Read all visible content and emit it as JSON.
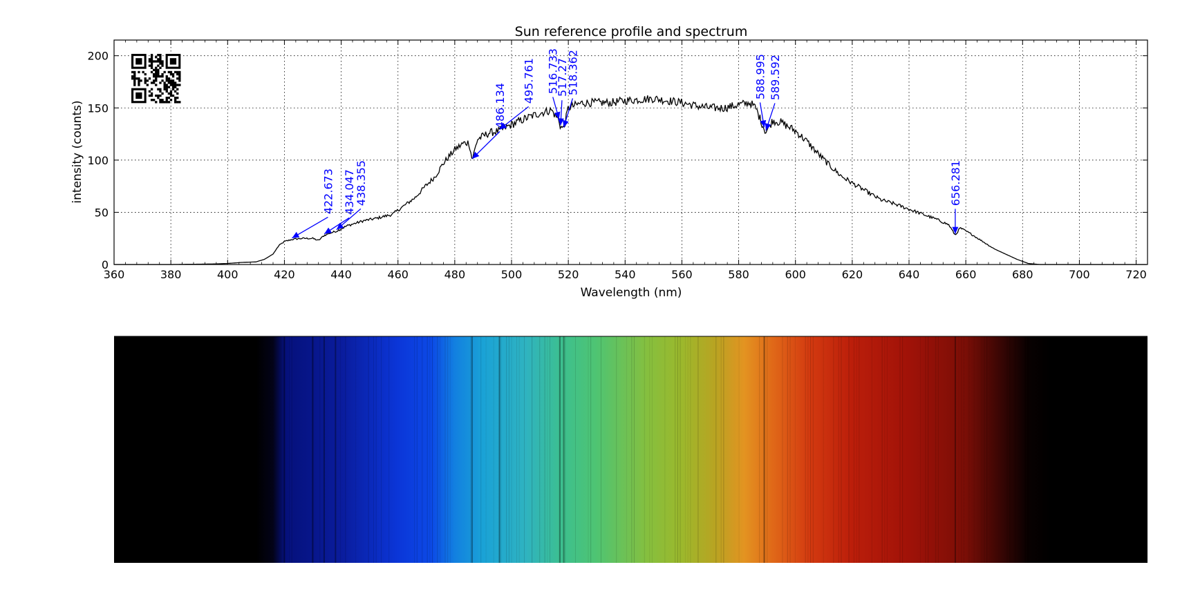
{
  "chart_data": {
    "type": "line",
    "title": "Sun reference profile and spectrum",
    "xlabel": "Wavelength (nm)",
    "ylabel": "intensity (counts)",
    "xlim": [
      360,
      724
    ],
    "ylim": [
      0,
      215
    ],
    "x_ticks": [
      360,
      380,
      400,
      420,
      440,
      460,
      480,
      500,
      520,
      540,
      560,
      580,
      600,
      620,
      640,
      660,
      680,
      700,
      720
    ],
    "y_ticks": [
      0,
      50,
      100,
      150,
      200
    ],
    "grid": true,
    "series_color": "#000000",
    "annotation_color": "#0000ff",
    "qr_code": "top-left",
    "profile_points": [
      [
        360,
        0
      ],
      [
        380,
        0
      ],
      [
        395,
        0.5
      ],
      [
        400,
        1
      ],
      [
        405,
        2
      ],
      [
        410,
        2.5
      ],
      [
        413,
        5
      ],
      [
        416,
        10
      ],
      [
        418,
        18
      ],
      [
        420,
        22
      ],
      [
        422.673,
        24
      ],
      [
        426,
        25
      ],
      [
        430,
        25
      ],
      [
        432,
        23
      ],
      [
        434.047,
        28
      ],
      [
        436,
        30
      ],
      [
        438.355,
        32
      ],
      [
        442,
        37
      ],
      [
        448,
        42
      ],
      [
        452,
        44
      ],
      [
        458,
        48
      ],
      [
        460,
        52
      ],
      [
        463,
        58
      ],
      [
        466,
        64
      ],
      [
        470,
        76
      ],
      [
        473,
        84
      ],
      [
        476,
        97
      ],
      [
        480,
        110
      ],
      [
        483,
        116
      ],
      [
        485,
        117
      ],
      [
        486.134,
        100
      ],
      [
        488,
        120
      ],
      [
        492,
        126
      ],
      [
        495.761,
        128
      ],
      [
        500,
        134
      ],
      [
        505,
        140
      ],
      [
        510,
        145
      ],
      [
        514,
        148
      ],
      [
        516.733,
        138
      ],
      [
        517.27,
        132
      ],
      [
        518.362,
        130
      ],
      [
        520,
        150
      ],
      [
        525,
        155
      ],
      [
        530,
        155
      ],
      [
        535,
        155
      ],
      [
        540,
        157
      ],
      [
        545,
        158
      ],
      [
        550,
        159
      ],
      [
        555,
        157
      ],
      [
        560,
        155
      ],
      [
        565,
        152
      ],
      [
        570,
        150
      ],
      [
        575,
        150
      ],
      [
        580,
        153
      ],
      [
        584,
        155
      ],
      [
        586,
        150
      ],
      [
        588.995,
        130
      ],
      [
        589.592,
        127
      ],
      [
        592,
        138
      ],
      [
        595,
        136
      ],
      [
        600,
        128
      ],
      [
        604,
        118
      ],
      [
        608,
        106
      ],
      [
        612,
        95
      ],
      [
        616,
        85
      ],
      [
        620,
        78
      ],
      [
        625,
        70
      ],
      [
        630,
        62
      ],
      [
        635,
        58
      ],
      [
        640,
        53
      ],
      [
        645,
        48
      ],
      [
        650,
        43
      ],
      [
        654,
        38
      ],
      [
        656.281,
        28
      ],
      [
        658,
        35
      ],
      [
        662,
        29
      ],
      [
        666,
        22
      ],
      [
        670,
        15
      ],
      [
        674,
        10
      ],
      [
        678,
        5
      ],
      [
        682,
        1
      ],
      [
        686,
        0
      ],
      [
        700,
        0
      ],
      [
        724,
        0
      ]
    ],
    "annotations": [
      "422.673",
      "434.047",
      "438.355",
      "486.134",
      "495.761",
      "516.733",
      "517.27",
      "518.362",
      "588.995",
      "589.592",
      "656.281"
    ],
    "spectrum_colors": [
      {
        "nm": 360,
        "color": "#000000"
      },
      {
        "nm": 410,
        "color": "#000000"
      },
      {
        "nm": 416,
        "color": "#030318"
      },
      {
        "nm": 420,
        "color": "#05107a"
      },
      {
        "nm": 440,
        "color": "#0a1c9c"
      },
      {
        "nm": 460,
        "color": "#0b36d8"
      },
      {
        "nm": 472,
        "color": "#0c4ae6"
      },
      {
        "nm": 480,
        "color": "#1280e0"
      },
      {
        "nm": 490,
        "color": "#1aa2d6"
      },
      {
        "nm": 505,
        "color": "#2fb3c0"
      },
      {
        "nm": 518,
        "color": "#3dc08e"
      },
      {
        "nm": 530,
        "color": "#4fc472"
      },
      {
        "nm": 548,
        "color": "#86bf3e"
      },
      {
        "nm": 560,
        "color": "#9cb82c"
      },
      {
        "nm": 572,
        "color": "#b9a322"
      },
      {
        "nm": 582,
        "color": "#e39321"
      },
      {
        "nm": 592,
        "color": "#e06818"
      },
      {
        "nm": 605,
        "color": "#d33a10"
      },
      {
        "nm": 620,
        "color": "#bb1e0a"
      },
      {
        "nm": 640,
        "color": "#a01208"
      },
      {
        "nm": 660,
        "color": "#7a0e06"
      },
      {
        "nm": 672,
        "color": "#3a0604"
      },
      {
        "nm": 682,
        "color": "#080101"
      },
      {
        "nm": 690,
        "color": "#000000"
      },
      {
        "nm": 724,
        "color": "#000000"
      }
    ],
    "spectrum_dark_lines_nm": [
      420,
      430,
      434,
      438,
      486.1,
      495.8,
      517,
      518.4,
      589,
      656.3
    ]
  }
}
